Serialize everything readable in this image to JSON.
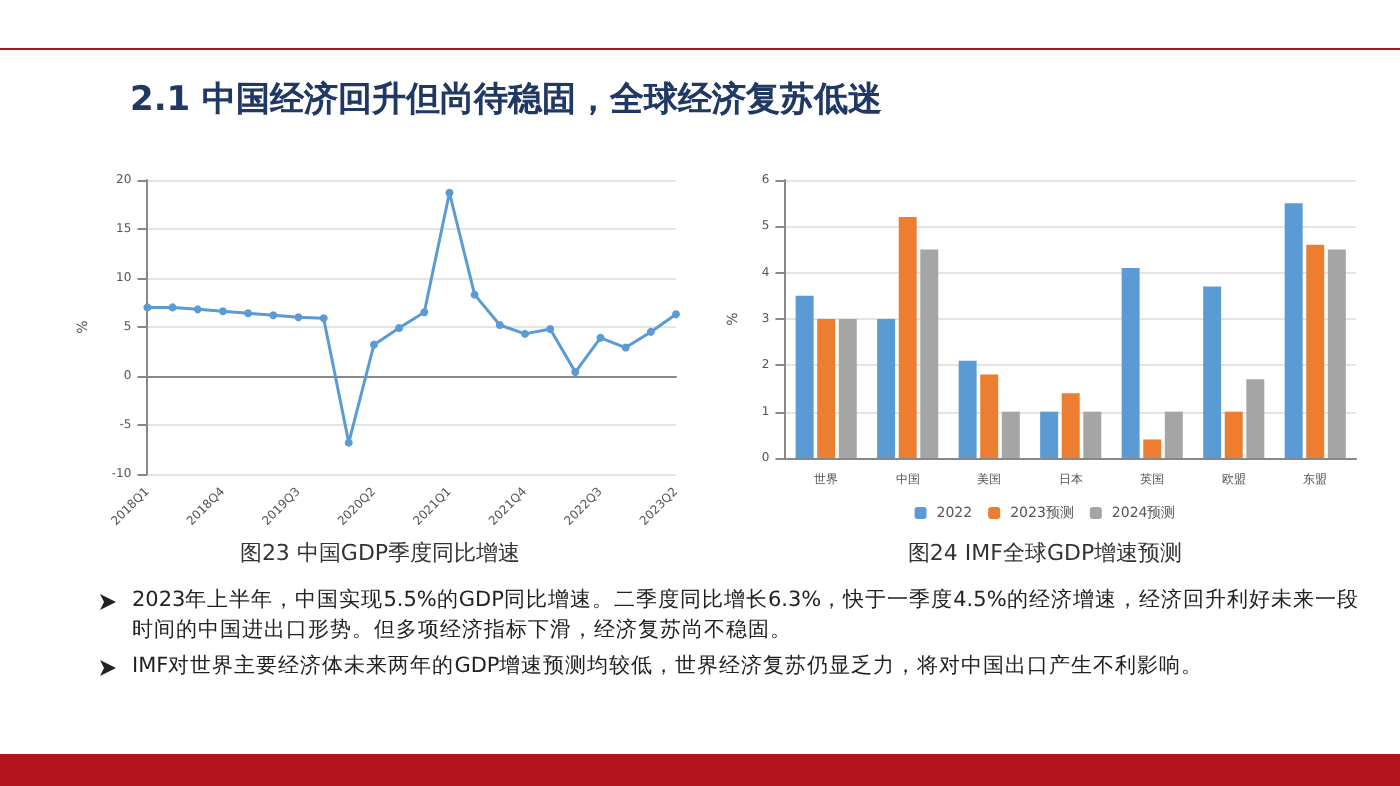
{
  "chart_data": [
    {
      "type": "other",
      "title": "2.1 中国经济回升但尚待稳固，全球经济复苏低迷"
    },
    {
      "type": "line",
      "title": "图23 中国GDP季度同比增速",
      "ylabel": "%",
      "categories": [
        "2018Q1",
        null,
        null,
        "2018Q4",
        null,
        null,
        "2019Q3",
        null,
        null,
        "2020Q2",
        null,
        null,
        "2021Q1",
        null,
        null,
        "2021Q4",
        null,
        null,
        "2022Q3",
        null,
        null,
        "2023Q2"
      ],
      "series": [
        {
          "color": "#5b9bd5",
          "values": [
            7.0,
            7.0,
            6.8,
            6.6,
            6.4,
            6.2,
            6.0,
            5.9,
            -6.8,
            3.2,
            4.9,
            6.5,
            18.7,
            8.3,
            5.2,
            4.3,
            4.8,
            0.4,
            3.9,
            2.9,
            4.5,
            6.3
          ]
        }
      ],
      "ylim": [
        -10,
        20
      ],
      "yticks": [
        -10,
        -5,
        0,
        5,
        10,
        15,
        20
      ],
      "grid": "y",
      "marker": "circle",
      "legend": false
    },
    {
      "type": "bar",
      "title": "图24 IMF全球GDP增速预测",
      "ylabel": "%",
      "categories": [
        "世界",
        "中国",
        "美国",
        "日本",
        "英国",
        "欧盟",
        "东盟"
      ],
      "series": [
        {
          "name": "2022",
          "color": "#5b9bd5",
          "values": [
            3.5,
            3.0,
            2.1,
            1.0,
            4.1,
            3.7,
            5.5
          ]
        },
        {
          "name": "2023预测",
          "color": "#ed7d31",
          "values": [
            3.0,
            5.2,
            1.8,
            1.4,
            0.4,
            1.0,
            4.6
          ]
        },
        {
          "name": "2024预测",
          "color": "#a5a5a5",
          "values": [
            3.0,
            4.5,
            1.0,
            1.0,
            1.0,
            1.7,
            4.5
          ]
        }
      ],
      "ylim": [
        0,
        6
      ],
      "yticks": [
        0,
        1,
        2,
        3,
        4,
        5,
        6
      ],
      "grid": "y",
      "legend": "bottom"
    },
    {
      "type": "other",
      "annotations": [
        "2023年上半年，中国实现5.5%的GDP同比增速。二季度同比增长6.3%，快于一季度4.5%的经济增速，经济回升利好未来一段时间的中国进出口形势。但多项经济指标下滑，经济复苏尚不稳固。",
        "IMF对世界主要经济体未来两年的GDP增速预测均较低，世界经济复苏仍显乏力，将对中国出口产生不利影响。"
      ]
    }
  ]
}
